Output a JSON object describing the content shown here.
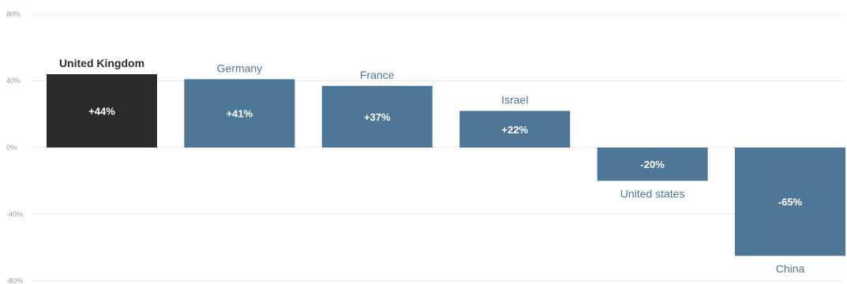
{
  "chart_data": {
    "type": "bar",
    "categories": [
      "United Kingdom",
      "Germany",
      "France",
      "Israel",
      "United states",
      "China"
    ],
    "values": [
      44,
      41,
      37,
      22,
      -20,
      -65
    ],
    "value_labels": [
      "+44%",
      "+41%",
      "+37%",
      "+22%",
      "-20%",
      "-65%"
    ],
    "ylim": [
      -80,
      80
    ],
    "yticks": [
      80,
      40,
      0,
      -40,
      -80
    ],
    "ytick_labels": [
      "80%",
      "40%",
      "0%",
      "-40%",
      "-80%"
    ],
    "grid": true,
    "legend": "none",
    "colors": {
      "highlight": "#2b2b2b",
      "default": "#4e7797",
      "highlight_label": "#2b2b2b",
      "default_label": "#4e7797"
    },
    "highlight_index": 0
  }
}
